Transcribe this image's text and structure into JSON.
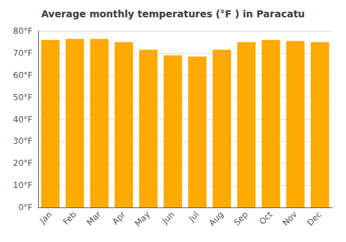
{
  "chart_data": {
    "type": "bar",
    "title": "Average monthly temperatures (°F ) in Paracatu",
    "categories": [
      "Jan",
      "Feb",
      "Mar",
      "Apr",
      "May",
      "Jun",
      "Jul",
      "Aug",
      "Sep",
      "Oct",
      "Nov",
      "Dec"
    ],
    "values": [
      76,
      76.5,
      76.5,
      75,
      71.5,
      69,
      68.5,
      71.5,
      75,
      76,
      75.5,
      75
    ],
    "color": "#FFAA00",
    "ylim": [
      0,
      80
    ],
    "yticks": [
      {
        "value": 0,
        "label": "0°F"
      },
      {
        "value": 10,
        "label": "10°F"
      },
      {
        "value": 20,
        "label": "20°F"
      },
      {
        "value": 30,
        "label": "30°F"
      },
      {
        "value": 40,
        "label": "40°F"
      },
      {
        "value": 50,
        "label": "50°F"
      },
      {
        "value": 60,
        "label": "60°F"
      },
      {
        "value": 70,
        "label": "70°F"
      },
      {
        "value": 80,
        "label": "80°F"
      }
    ],
    "grid": true
  }
}
